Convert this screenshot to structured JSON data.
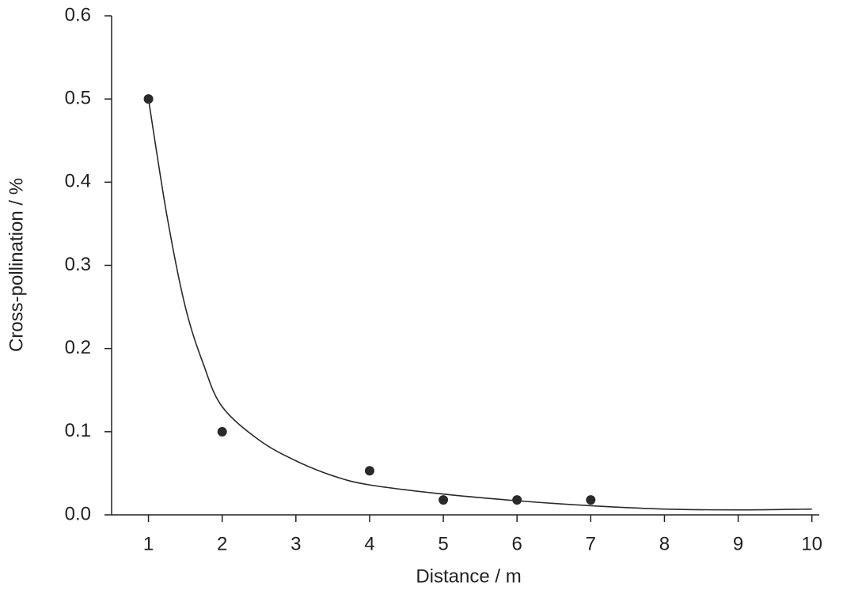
{
  "chart_data": {
    "type": "scatter",
    "xlabel": "Distance / m",
    "ylabel": "Cross-pollination / %",
    "xlim": [
      0.5,
      10.1
    ],
    "ylim": [
      0,
      0.6
    ],
    "xticks": [
      1,
      2,
      3,
      4,
      5,
      6,
      7,
      8,
      9,
      10
    ],
    "yticks": [
      {
        "value": 0,
        "label": "0.0"
      },
      0.1,
      0.2,
      0.3,
      0.4,
      0.5,
      0.6
    ],
    "series": [
      {
        "type": "scatter",
        "color": "#2a2a2a",
        "x": [
          1,
          2,
          4,
          5,
          6,
          7
        ],
        "values": [
          0.5,
          0.1,
          0.053,
          0.018,
          0.018,
          0.018
        ]
      },
      {
        "type": "line",
        "color": "#2a2a2a",
        "x": [
          1,
          1.25,
          1.5,
          1.75,
          2,
          2.5,
          3,
          3.5,
          4,
          5,
          6,
          7,
          8,
          9,
          10
        ],
        "values": [
          0.5,
          0.36,
          0.25,
          0.18,
          0.13,
          0.09,
          0.065,
          0.047,
          0.036,
          0.025,
          0.017,
          0.011,
          0.007,
          0.006,
          0.007
        ]
      }
    ]
  }
}
